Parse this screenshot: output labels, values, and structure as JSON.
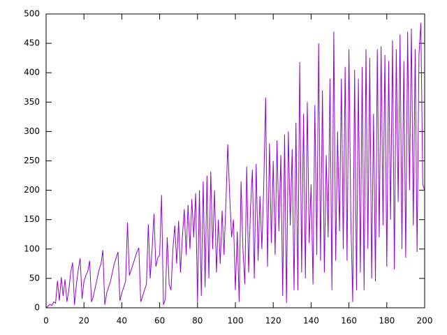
{
  "chart_data": {
    "type": "line",
    "x": [
      0,
      1,
      2,
      3,
      4,
      5,
      6,
      7,
      8,
      9,
      10,
      11,
      12,
      13,
      14,
      15,
      16,
      17,
      18,
      19,
      20,
      21,
      22,
      23,
      24,
      25,
      26,
      27,
      28,
      29,
      30,
      31,
      32,
      33,
      34,
      35,
      36,
      37,
      38,
      39,
      40,
      41,
      42,
      43,
      44,
      45,
      46,
      47,
      48,
      49,
      50,
      51,
      52,
      53,
      54,
      55,
      56,
      57,
      58,
      59,
      60,
      61,
      62,
      63,
      64,
      65,
      66,
      67,
      68,
      69,
      70,
      71,
      72,
      73,
      74,
      75,
      76,
      77,
      78,
      79,
      80,
      81,
      82,
      83,
      84,
      85,
      86,
      87,
      88,
      89,
      90,
      91,
      92,
      93,
      94,
      95,
      96,
      97,
      98,
      99,
      100,
      101,
      102,
      103,
      104,
      105,
      106,
      107,
      108,
      109,
      110,
      111,
      112,
      113,
      114,
      115,
      116,
      117,
      118,
      119,
      120,
      121,
      122,
      123,
      124,
      125,
      126,
      127,
      128,
      129,
      130,
      131,
      132,
      133,
      134,
      135,
      136,
      137,
      138,
      139,
      140,
      141,
      142,
      143,
      144,
      145,
      146,
      147,
      148,
      149,
      150,
      151,
      152,
      153,
      154,
      155,
      156,
      157,
      158,
      159,
      160,
      161,
      162,
      163,
      164,
      165,
      166,
      167,
      168,
      169,
      170,
      171,
      172,
      173,
      174,
      175,
      176,
      177,
      178,
      179,
      180,
      181,
      182,
      183,
      184,
      185,
      186,
      187,
      188,
      189,
      190,
      191,
      192,
      193,
      194,
      195,
      196,
      197,
      198,
      199,
      200
    ],
    "values": [
      0,
      3,
      6,
      4,
      10,
      8,
      46,
      12,
      52,
      20,
      48,
      10,
      30,
      60,
      77,
      5,
      40,
      65,
      84,
      15,
      45,
      55,
      62,
      80,
      10,
      20,
      35,
      50,
      65,
      75,
      98,
      5,
      25,
      35,
      45,
      60,
      75,
      85,
      95,
      12,
      25,
      35,
      45,
      145,
      55,
      65,
      75,
      85,
      95,
      102,
      10,
      20,
      30,
      40,
      142,
      50,
      100,
      160,
      70,
      85,
      90,
      192,
      5,
      15,
      120,
      40,
      30,
      100,
      140,
      75,
      148,
      60,
      120,
      168,
      90,
      175,
      100,
      185,
      120,
      195,
      10,
      200,
      20,
      215,
      35,
      225,
      50,
      232,
      100,
      200,
      60,
      150,
      75,
      165,
      90,
      180,
      278,
      190,
      120,
      150,
      30,
      130,
      10,
      215,
      100,
      40,
      240,
      60,
      170,
      235,
      50,
      245,
      80,
      190,
      100,
      210,
      358,
      70,
      280,
      110,
      250,
      90,
      285,
      130,
      260,
      20,
      295,
      8,
      300,
      140,
      270,
      30,
      315,
      30,
      418,
      60,
      330,
      50,
      350,
      110,
      210,
      40,
      345,
      90,
      450,
      80,
      370,
      60,
      260,
      120,
      390,
      30,
      470,
      80,
      300,
      130,
      390,
      100,
      410,
      80,
      440,
      150,
      10,
      405,
      30,
      390,
      60,
      410,
      30,
      440,
      100,
      425,
      50,
      330,
      45,
      440,
      120,
      445,
      140,
      430,
      70,
      420,
      150,
      455,
      65,
      440,
      180,
      465,
      100,
      420,
      85,
      470,
      200,
      475,
      140,
      440,
      95,
      430,
      485,
      210,
      200
    ],
    "color": "#9400d3",
    "xlim": [
      0,
      200
    ],
    "xticks": [
      0,
      20,
      40,
      60,
      80,
      100,
      120,
      140,
      160,
      180,
      200
    ],
    "ylim": [
      0,
      500
    ],
    "yticks": [
      0,
      50,
      100,
      150,
      200,
      250,
      300,
      350,
      400,
      450,
      500
    ],
    "grid": false
  }
}
